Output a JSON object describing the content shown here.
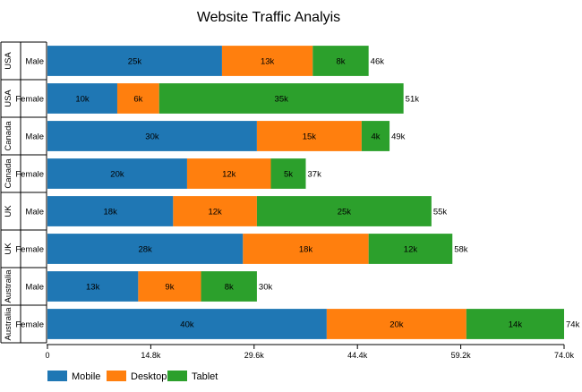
{
  "chart_data": {
    "type": "bar",
    "orientation": "horizontal",
    "stacked": true,
    "title": "Website Traffic Analyis",
    "xlabel": "",
    "ylabel": "",
    "xlim": [
      0,
      74
    ],
    "x_ticks": [
      "0",
      "14.8k",
      "29.6k",
      "44.4k",
      "59.2k",
      "74.0k"
    ],
    "grid": false,
    "legend_position": "bottom-left",
    "categories": [
      {
        "group": "USA",
        "label": "Male"
      },
      {
        "group": "USA",
        "label": "Female"
      },
      {
        "group": "Canada",
        "label": "Male"
      },
      {
        "group": "Canada",
        "label": "Female"
      },
      {
        "group": "UK",
        "label": "Male"
      },
      {
        "group": "UK",
        "label": "Female"
      },
      {
        "group": "Australia",
        "label": "Male"
      },
      {
        "group": "Australia",
        "label": "Female"
      }
    ],
    "series": [
      {
        "name": "Mobile",
        "color": "#1f77b4",
        "values": [
          25,
          10,
          30,
          20,
          18,
          28,
          13,
          40
        ]
      },
      {
        "name": "Desktop",
        "color": "#ff7f0e",
        "values": [
          13,
          6,
          15,
          12,
          12,
          18,
          9,
          20
        ]
      },
      {
        "name": "Tablet",
        "color": "#2ca02c",
        "values": [
          8,
          35,
          4,
          5,
          25,
          12,
          8,
          14
        ]
      }
    ],
    "totals": [
      46,
      51,
      49,
      37,
      55,
      58,
      30,
      74
    ],
    "value_suffix": "k"
  }
}
